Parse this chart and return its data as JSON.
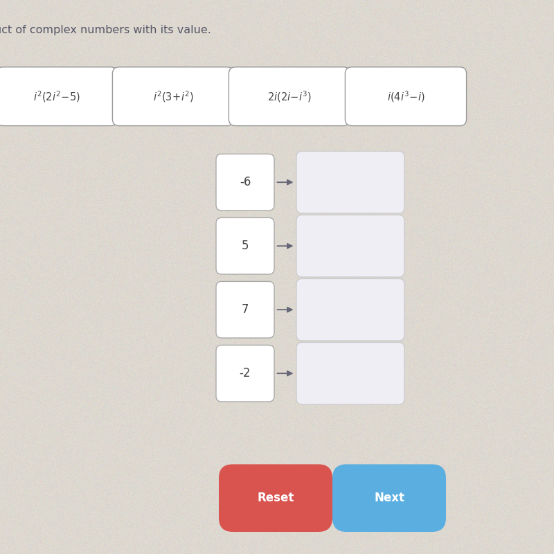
{
  "bg_color": "#ddd8d0",
  "subtitle": "uct of complex numbers with its value.",
  "tile_expressions_latex": [
    "$i^2(2i^2\\!-\\!5)$",
    "$i^2(3\\!+\\!i^2)$",
    "$2i(2i\\!-\\!i^3)$",
    "$i(4i^3\\!-\\!i)$"
  ],
  "left_values": [
    "-6",
    "5",
    "7",
    "-2"
  ],
  "reset_color": "#d9534f",
  "next_color": "#5aafe0",
  "tile_bg": "#ffffff",
  "tile_border": "#999999",
  "value_box_bg": "#ffffff",
  "value_box_border": "#aaaaaa",
  "drop_box_bg": "#f0eef5",
  "drop_box_border": "#cccccc",
  "subtitle_color": "#555566",
  "text_color": "#444444"
}
